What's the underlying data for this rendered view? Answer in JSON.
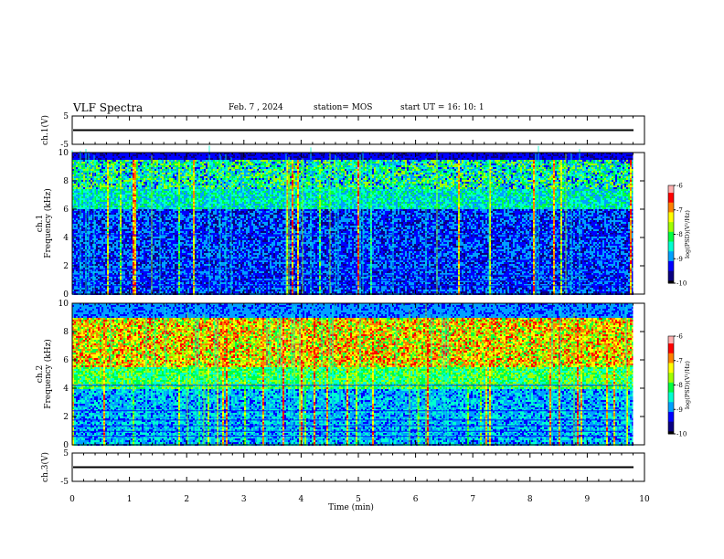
{
  "header": {
    "title": "VLF Spectra",
    "date": "Feb. 7 , 2024",
    "station": "station= MOS",
    "start_ut": "start UT =   16: 10: 1"
  },
  "colors": {
    "colormap": [
      "#000000",
      "#0a0080",
      "#0000ff",
      "#00a0ff",
      "#00ffd0",
      "#00ff40",
      "#a0ff00",
      "#ffff00",
      "#ff8000",
      "#ff0000",
      "#ffb0b0"
    ]
  },
  "chart_data": [
    {
      "type": "line",
      "name": "ch1-waveform",
      "ylabel": "ch.1(V)",
      "ylim": [
        -5,
        5
      ],
      "yticks": [
        "5",
        "-5"
      ],
      "xlim": [
        0,
        10
      ],
      "level": 0
    },
    {
      "type": "heatmap",
      "name": "ch1-spectrogram",
      "ylabel_channel": "ch.1",
      "ylabel": "Frequency (kHz)",
      "ylim": [
        0,
        10
      ],
      "yticks": [
        "0",
        "2",
        "4",
        "6",
        "8",
        "10"
      ],
      "xlim": [
        0,
        10
      ],
      "data_extent_min": 9.8,
      "colorbar": {
        "label": "log(PSD)(V²/Hz)",
        "range": [
          -10,
          -6
        ],
        "ticks": [
          "-6",
          "-7",
          "-8",
          "-9",
          "-10"
        ]
      },
      "band_kHz": [
        7.5,
        9.5
      ],
      "band_level": 0.42,
      "background_level": 0.1
    },
    {
      "type": "heatmap",
      "name": "ch2-spectrogram",
      "ylabel_channel": "ch.2",
      "ylabel": "Frequency (kHz)",
      "ylim": [
        0,
        10
      ],
      "yticks": [
        "0",
        "2",
        "4",
        "6",
        "8",
        "10"
      ],
      "xlim": [
        0,
        10
      ],
      "data_extent_min": 9.8,
      "colorbar": {
        "label": "log(PSD)(V²/Hz)",
        "range": [
          -10,
          -6
        ],
        "ticks": [
          "-6",
          "-7",
          "-8",
          "-9",
          "-10"
        ]
      },
      "band_kHz": [
        5.5,
        9.0
      ],
      "band_level": 0.7,
      "background_level": 0.2
    },
    {
      "type": "line",
      "name": "ch3-waveform",
      "ylabel": "ch.3(V)",
      "ylim": [
        -5,
        5
      ],
      "yticks": [
        "5",
        "-5"
      ],
      "xlim": [
        0,
        10
      ],
      "level": 0
    }
  ],
  "x_axis": {
    "label": "Time (min)",
    "range": [
      0,
      10
    ],
    "ticks": [
      "0",
      "1",
      "2",
      "3",
      "4",
      "5",
      "6",
      "7",
      "8",
      "9",
      "10"
    ]
  }
}
